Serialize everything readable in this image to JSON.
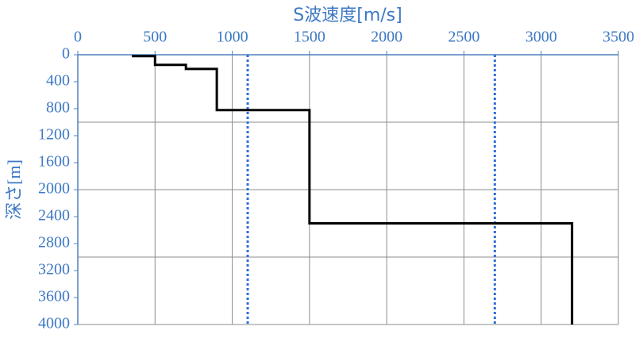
{
  "chart_data": {
    "type": "line",
    "title": "S波速度[m/s]",
    "y_label": "深さ[m]",
    "xlim": [
      0,
      3500
    ],
    "xticks": [
      0,
      500,
      1000,
      1500,
      2000,
      2500,
      3000,
      3500
    ],
    "ylim": [
      0,
      4000
    ],
    "yticks": [
      0,
      400,
      800,
      1200,
      1600,
      2000,
      2400,
      2800,
      3200,
      3600,
      4000
    ],
    "y_inverted": true,
    "x_grid": [
      500,
      1000,
      1500,
      2000,
      2500,
      3000,
      3500
    ],
    "y_grid": [
      1000,
      2000,
      3000,
      4000
    ],
    "series": [
      {
        "color": "#000000",
        "x": [
          350,
          500,
          500,
          700,
          700,
          900,
          900,
          1500,
          1500,
          3200,
          3200
        ],
        "y": [
          20,
          20,
          150,
          150,
          210,
          210,
          820,
          820,
          2500,
          2500,
          4000
        ]
      }
    ],
    "reference_lines": [
      {
        "x": 1100,
        "color": "#2f6fd6"
      },
      {
        "x": 2700,
        "color": "#2f6fd6"
      }
    ]
  }
}
